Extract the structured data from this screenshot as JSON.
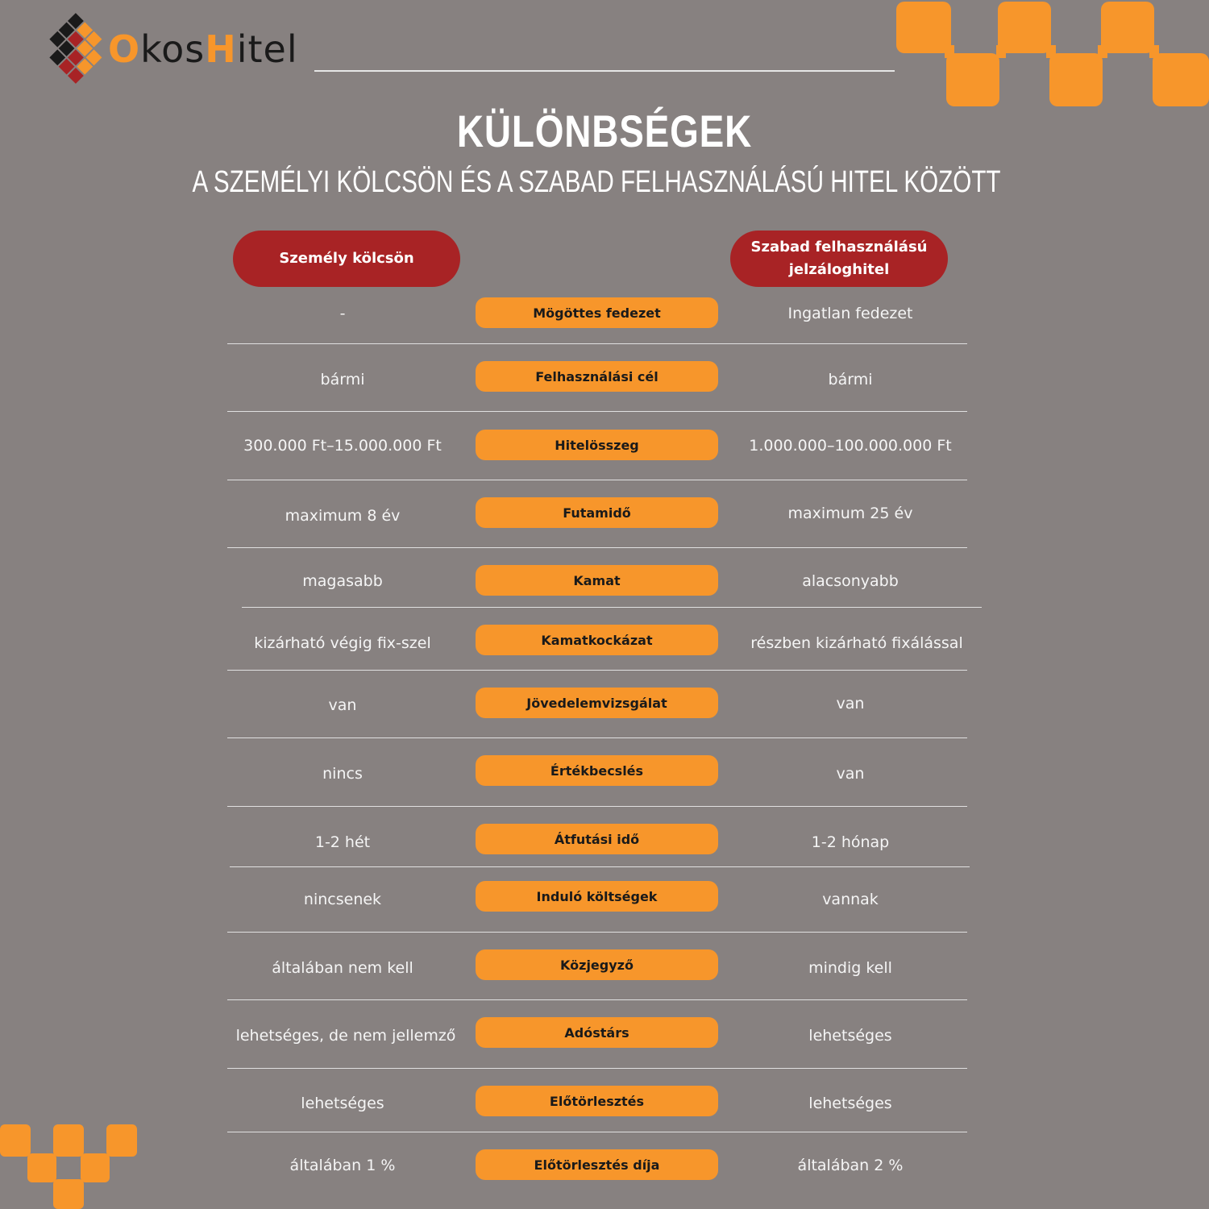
{
  "brand": {
    "part1": "O",
    "part2": "kos",
    "part3": "H",
    "part4": "itel"
  },
  "title": "KÜLÖNBSÉGEK",
  "subtitle": "A SZEMÉLYI KÖLCSÖN ÉS A SZABAD FELHASZNÁLÁSÚ HITEL KÖZÖTT",
  "columns": {
    "left": "Személy kölcsön",
    "right_line1": "Szabad felhasználású",
    "right_line2": "jelzáloghitel"
  },
  "colors": {
    "background": "#878180",
    "accent": "#f7962b",
    "header_red": "#a82325"
  },
  "rows": [
    {
      "label": "Mögöttes fedezet",
      "left": "-",
      "right": "Ingatlan fedezet"
    },
    {
      "label": "Felhasználási cél",
      "left": "bármi",
      "right": "bármi"
    },
    {
      "label": "Hitelösszeg",
      "left": "300.000 Ft–15.000.000 Ft",
      "right": "1.000.000–100.000.000 Ft"
    },
    {
      "label": "Futamidő",
      "left": "maximum 8 év",
      "right": "maximum 25 év"
    },
    {
      "label": "Kamat",
      "left": "magasabb",
      "right": "alacsonyabb"
    },
    {
      "label": "Kamatkockázat",
      "left": "kizárható végig fix-szel",
      "right": "részben kizárható fixálással"
    },
    {
      "label": "Jövedelemvizsgálat",
      "left": "van",
      "right": "van"
    },
    {
      "label": "Értékbecslés",
      "left": "nincs",
      "right": "van"
    },
    {
      "label": "Átfutási idő",
      "left": "1-2 hét",
      "right": "1-2 hónap"
    },
    {
      "label": "Induló költségek",
      "left": "nincsenek",
      "right": "vannak"
    },
    {
      "label": "Közjegyző",
      "left": "általában nem kell",
      "right": "mindig kell"
    },
    {
      "label": "Adóstárs",
      "left": "lehetséges, de nem jellemző",
      "right": "lehetséges"
    },
    {
      "label": "Előtörlesztés",
      "left": "lehetséges",
      "right": "lehetséges"
    },
    {
      "label": "Előtörlesztés díja",
      "left": "általában 1 %",
      "right": "általában 2 %"
    }
  ]
}
